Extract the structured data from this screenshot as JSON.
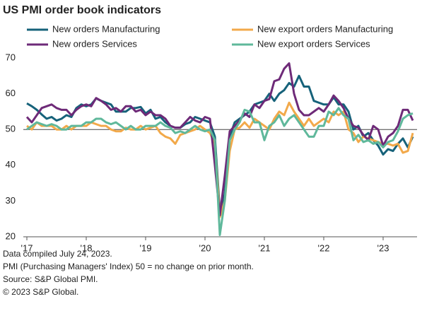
{
  "chart_data": {
    "type": "line",
    "title": "US PMI order book indicators",
    "categories": [
      "'17",
      null,
      null,
      null,
      null,
      null,
      null,
      null,
      null,
      null,
      null,
      null,
      "'18",
      null,
      null,
      null,
      null,
      null,
      null,
      null,
      null,
      null,
      null,
      null,
      "'19",
      null,
      null,
      null,
      null,
      null,
      null,
      null,
      null,
      null,
      null,
      null,
      "'20",
      null,
      null,
      null,
      null,
      null,
      null,
      null,
      null,
      null,
      null,
      null,
      "'21",
      null,
      null,
      null,
      null,
      null,
      null,
      null,
      null,
      null,
      null,
      null,
      "'22",
      null,
      null,
      null,
      null,
      null,
      null,
      null,
      null,
      null,
      null,
      null,
      "'23",
      null,
      null,
      null,
      null,
      null,
      null
    ],
    "series": [
      {
        "name": "New orders Manufacturing",
        "color": "#16627a",
        "values": [
          57.3,
          56.5,
          55.5,
          54.2,
          53,
          53.5,
          52.5,
          53,
          54,
          53.5,
          56,
          57,
          56.5,
          57,
          58.7,
          58,
          57.5,
          57,
          55,
          55,
          55,
          56,
          56,
          56.3,
          54.5,
          55.5,
          53,
          53.5,
          52,
          51,
          50.5,
          50.5,
          51.5,
          52,
          53.5,
          53,
          52.5,
          52,
          48,
          27,
          32,
          48,
          52,
          53,
          54,
          55,
          57,
          57.5,
          58,
          60,
          58,
          60,
          61,
          63,
          62,
          65,
          62,
          62,
          58,
          57.5,
          57,
          57,
          59,
          57,
          57,
          55,
          50,
          51,
          48,
          49,
          47,
          45.5,
          43,
          44.5,
          44,
          46,
          47.5,
          45,
          48
        ]
      },
      {
        "name": "New export orders Manufacturing",
        "color": "#f2a94a",
        "values": [
          51,
          50,
          52,
          51,
          51,
          51,
          50,
          50,
          51,
          50,
          51,
          51,
          51,
          52,
          51.5,
          51,
          51,
          50,
          49.5,
          49.5,
          50.5,
          50,
          50,
          51,
          50,
          50.5,
          51,
          49,
          48,
          47.5,
          46,
          48.5,
          49,
          49.5,
          50,
          51,
          50,
          49,
          46,
          25.5,
          30,
          44,
          50,
          50.5,
          52,
          50.5,
          53,
          52,
          51,
          50,
          53,
          55,
          54,
          57.5,
          55,
          53,
          51,
          53,
          51,
          52,
          53,
          52,
          55,
          54,
          55,
          50,
          49,
          46.5,
          48,
          47.5,
          47,
          46.5,
          46,
          46,
          45.5,
          46,
          43.5,
          44,
          49
        ]
      },
      {
        "name": "New orders Services",
        "color": "#6e2a78",
        "values": [
          53.5,
          52,
          54,
          56,
          56.5,
          57,
          56,
          55.5,
          55.5,
          54,
          55.5,
          56.5,
          57,
          56.5,
          58.8,
          58,
          57,
          55.5,
          56,
          55,
          56.5,
          56.5,
          55,
          55.5,
          54,
          55,
          54,
          54,
          53,
          51,
          50.5,
          50.5,
          52,
          53.5,
          52.5,
          52,
          53.5,
          53,
          40,
          26,
          37,
          49.5,
          51,
          52.5,
          54.5,
          53.5,
          57,
          56,
          58,
          58.5,
          63.5,
          64,
          67,
          68.5,
          60,
          55.5,
          54,
          54,
          55,
          56,
          55,
          57,
          59.5,
          58,
          56,
          53,
          51,
          50.5,
          48.5,
          47,
          51,
          50,
          45.5,
          48,
          49,
          51,
          55.5,
          55.5,
          52.5
        ]
      },
      {
        "name": "New export orders Services",
        "color": "#5fb89b",
        "values": [
          50,
          51,
          52,
          51.5,
          51,
          51.5,
          51,
          50,
          50,
          51,
          51,
          51,
          52,
          52,
          53,
          53,
          52,
          51.5,
          52,
          51,
          50,
          51,
          50,
          50,
          51,
          51,
          51,
          52,
          51,
          50.5,
          49,
          49.5,
          49,
          50,
          51,
          50,
          49.5,
          50,
          47,
          20.5,
          30,
          47,
          50,
          52,
          55.5,
          55,
          52,
          52,
          47,
          51,
          52,
          54,
          51,
          53,
          54,
          52,
          50,
          48,
          48,
          51,
          51,
          55,
          54,
          56,
          54,
          53,
          47,
          48.5,
          46.5,
          47,
          46,
          46.5,
          45,
          46.5,
          47,
          49.5,
          53,
          54,
          54.5
        ]
      }
    ],
    "ylim": [
      20,
      70
    ],
    "yticks": [
      20,
      30,
      40,
      50,
      60,
      70
    ],
    "hline": 50,
    "notes": [
      "Data compiled July 24, 2023.",
      "PMI (Purchasing Managers' Index) 50 =  no change on prior month.",
      "Source: S&P Global PMI.",
      "© 2023 S&P Global."
    ]
  }
}
